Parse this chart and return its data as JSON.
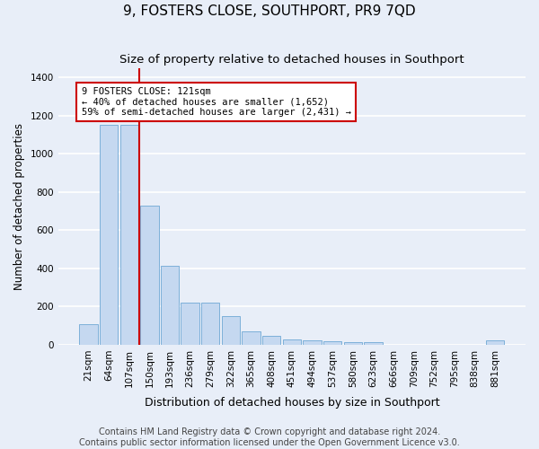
{
  "title": "9, FOSTERS CLOSE, SOUTHPORT, PR9 7QD",
  "subtitle": "Size of property relative to detached houses in Southport",
  "xlabel": "Distribution of detached houses by size in Southport",
  "ylabel": "Number of detached properties",
  "categories": [
    "21sqm",
    "64sqm",
    "107sqm",
    "150sqm",
    "193sqm",
    "236sqm",
    "279sqm",
    "322sqm",
    "365sqm",
    "408sqm",
    "451sqm",
    "494sqm",
    "537sqm",
    "580sqm",
    "623sqm",
    "666sqm",
    "709sqm",
    "752sqm",
    "795sqm",
    "838sqm",
    "881sqm"
  ],
  "values": [
    110,
    1150,
    1150,
    730,
    415,
    220,
    220,
    150,
    70,
    45,
    30,
    25,
    20,
    15,
    15,
    0,
    0,
    0,
    0,
    0,
    25
  ],
  "bar_color": "#c5d8f0",
  "bar_edge_color": "#6fa8d4",
  "vline_color": "#cc0000",
  "vline_x": 2.5,
  "annotation_text": "9 FOSTERS CLOSE: 121sqm\n← 40% of detached houses are smaller (1,652)\n59% of semi-detached houses are larger (2,431) →",
  "annotation_box_facecolor": "#ffffff",
  "annotation_box_edgecolor": "#cc0000",
  "ylim": [
    0,
    1450
  ],
  "yticks": [
    0,
    200,
    400,
    600,
    800,
    1000,
    1200,
    1400
  ],
  "bg_color": "#e8eef8",
  "grid_color": "#ffffff",
  "title_fontsize": 11,
  "subtitle_fontsize": 9.5,
  "ylabel_fontsize": 8.5,
  "xlabel_fontsize": 9,
  "tick_fontsize": 7.5,
  "footer_line1": "Contains HM Land Registry data © Crown copyright and database right 2024.",
  "footer_line2": "Contains public sector information licensed under the Open Government Licence v3.0.",
  "footer_fontsize": 7
}
